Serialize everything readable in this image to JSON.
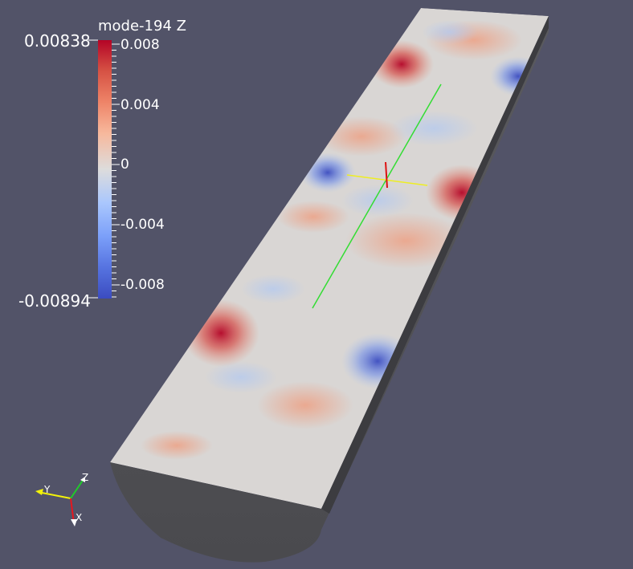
{
  "colorbar": {
    "title": "mode-194 Z",
    "range_max_label": "0.00838",
    "range_min_label": "-0.00894",
    "ticks": [
      "0.008",
      "0.004",
      "0",
      "-0.004",
      "-0.008"
    ],
    "colormap": "cool-to-warm"
  },
  "orientation_axes": {
    "x_label": "X",
    "y_label": "Y",
    "z_label": "Z",
    "x_color": "#e8161e",
    "y_color": "#f2f20a",
    "z_color": "#1fcc2a"
  },
  "background_color": "#525368"
}
